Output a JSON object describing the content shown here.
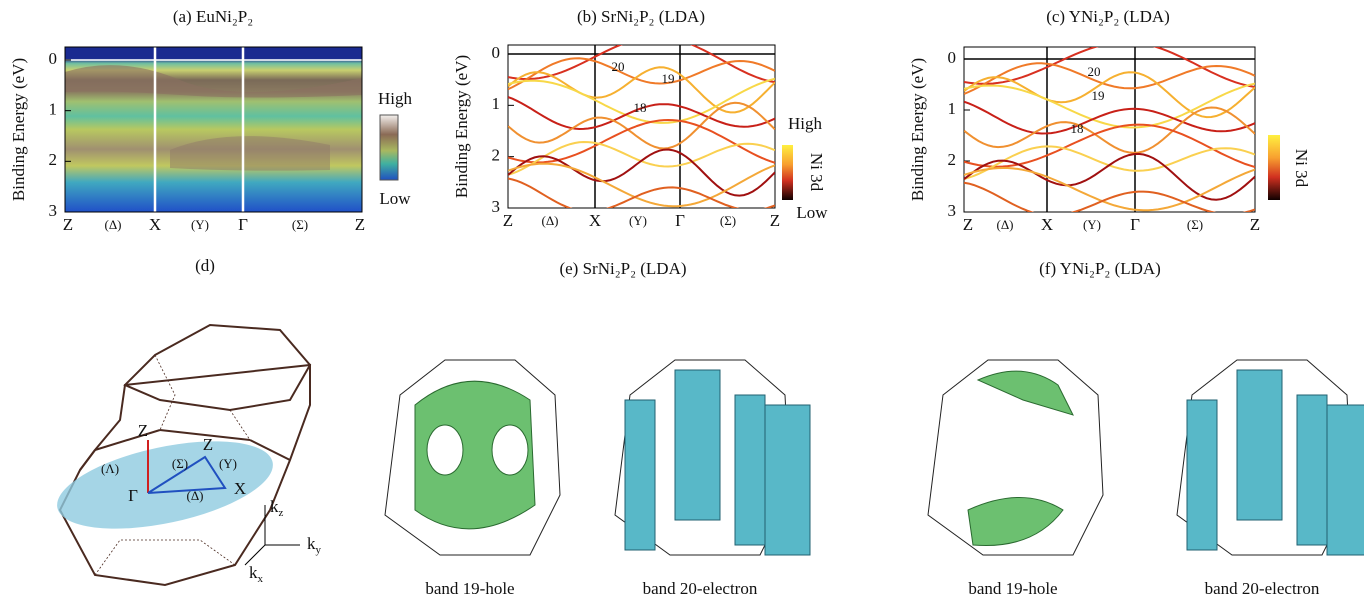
{
  "panels": [
    {
      "title": "(a) EuNi₂P₂",
      "y_label": "Binding Energy (eV)",
      "yticks": [
        0,
        1,
        2,
        3
      ],
      "kpoints": [
        "Z",
        "(Δ)",
        "X",
        "(Y)",
        "Γ",
        "(Σ)",
        "Z"
      ],
      "colorbar": [
        "High",
        "Low"
      ]
    },
    {
      "title": "(b) SrNi₂P₂ (LDA)",
      "y_label": "Binding Energy (eV)",
      "yticks": [
        0,
        1,
        2,
        3
      ],
      "kpoints": [
        "Z",
        "(Δ)",
        "X",
        "(Y)",
        "Γ",
        "(Σ)",
        "Z"
      ],
      "colorbar": [
        "High",
        "Low"
      ],
      "colorbar_label": "Ni 3d",
      "band_labels": [
        "20",
        "19",
        "18"
      ]
    },
    {
      "title": "(c) YNi₂P₂ (LDA)",
      "y_label": "Binding Energy (eV)",
      "yticks": [
        0,
        1,
        2,
        3
      ],
      "kpoints": [
        "Z",
        "(Δ)",
        "X",
        "(Y)",
        "Γ",
        "(Σ)",
        "Z"
      ],
      "colorbar_label": "Ni 3d",
      "band_labels": [
        "20",
        "19",
        "18"
      ]
    }
  ],
  "bz": {
    "title": "(d)",
    "labels": [
      "Z",
      "Γ",
      "X",
      "Z",
      "(Λ)",
      "(Σ)",
      "(Y)",
      "(Δ)"
    ],
    "axes": [
      {
        "base": "k",
        "sub": "z"
      },
      {
        "base": "k",
        "sub": "y"
      },
      {
        "base": "k",
        "sub": "x"
      }
    ]
  },
  "fermi": [
    {
      "title": "(e)  SrNi₂P₂ (LDA)",
      "captions": [
        "band 19-hole",
        "band 20-electron"
      ]
    },
    {
      "title": "(f)  YNi₂P₂ (LDA)",
      "captions": [
        "band 19-hole",
        "band 20-electron"
      ]
    }
  ]
}
